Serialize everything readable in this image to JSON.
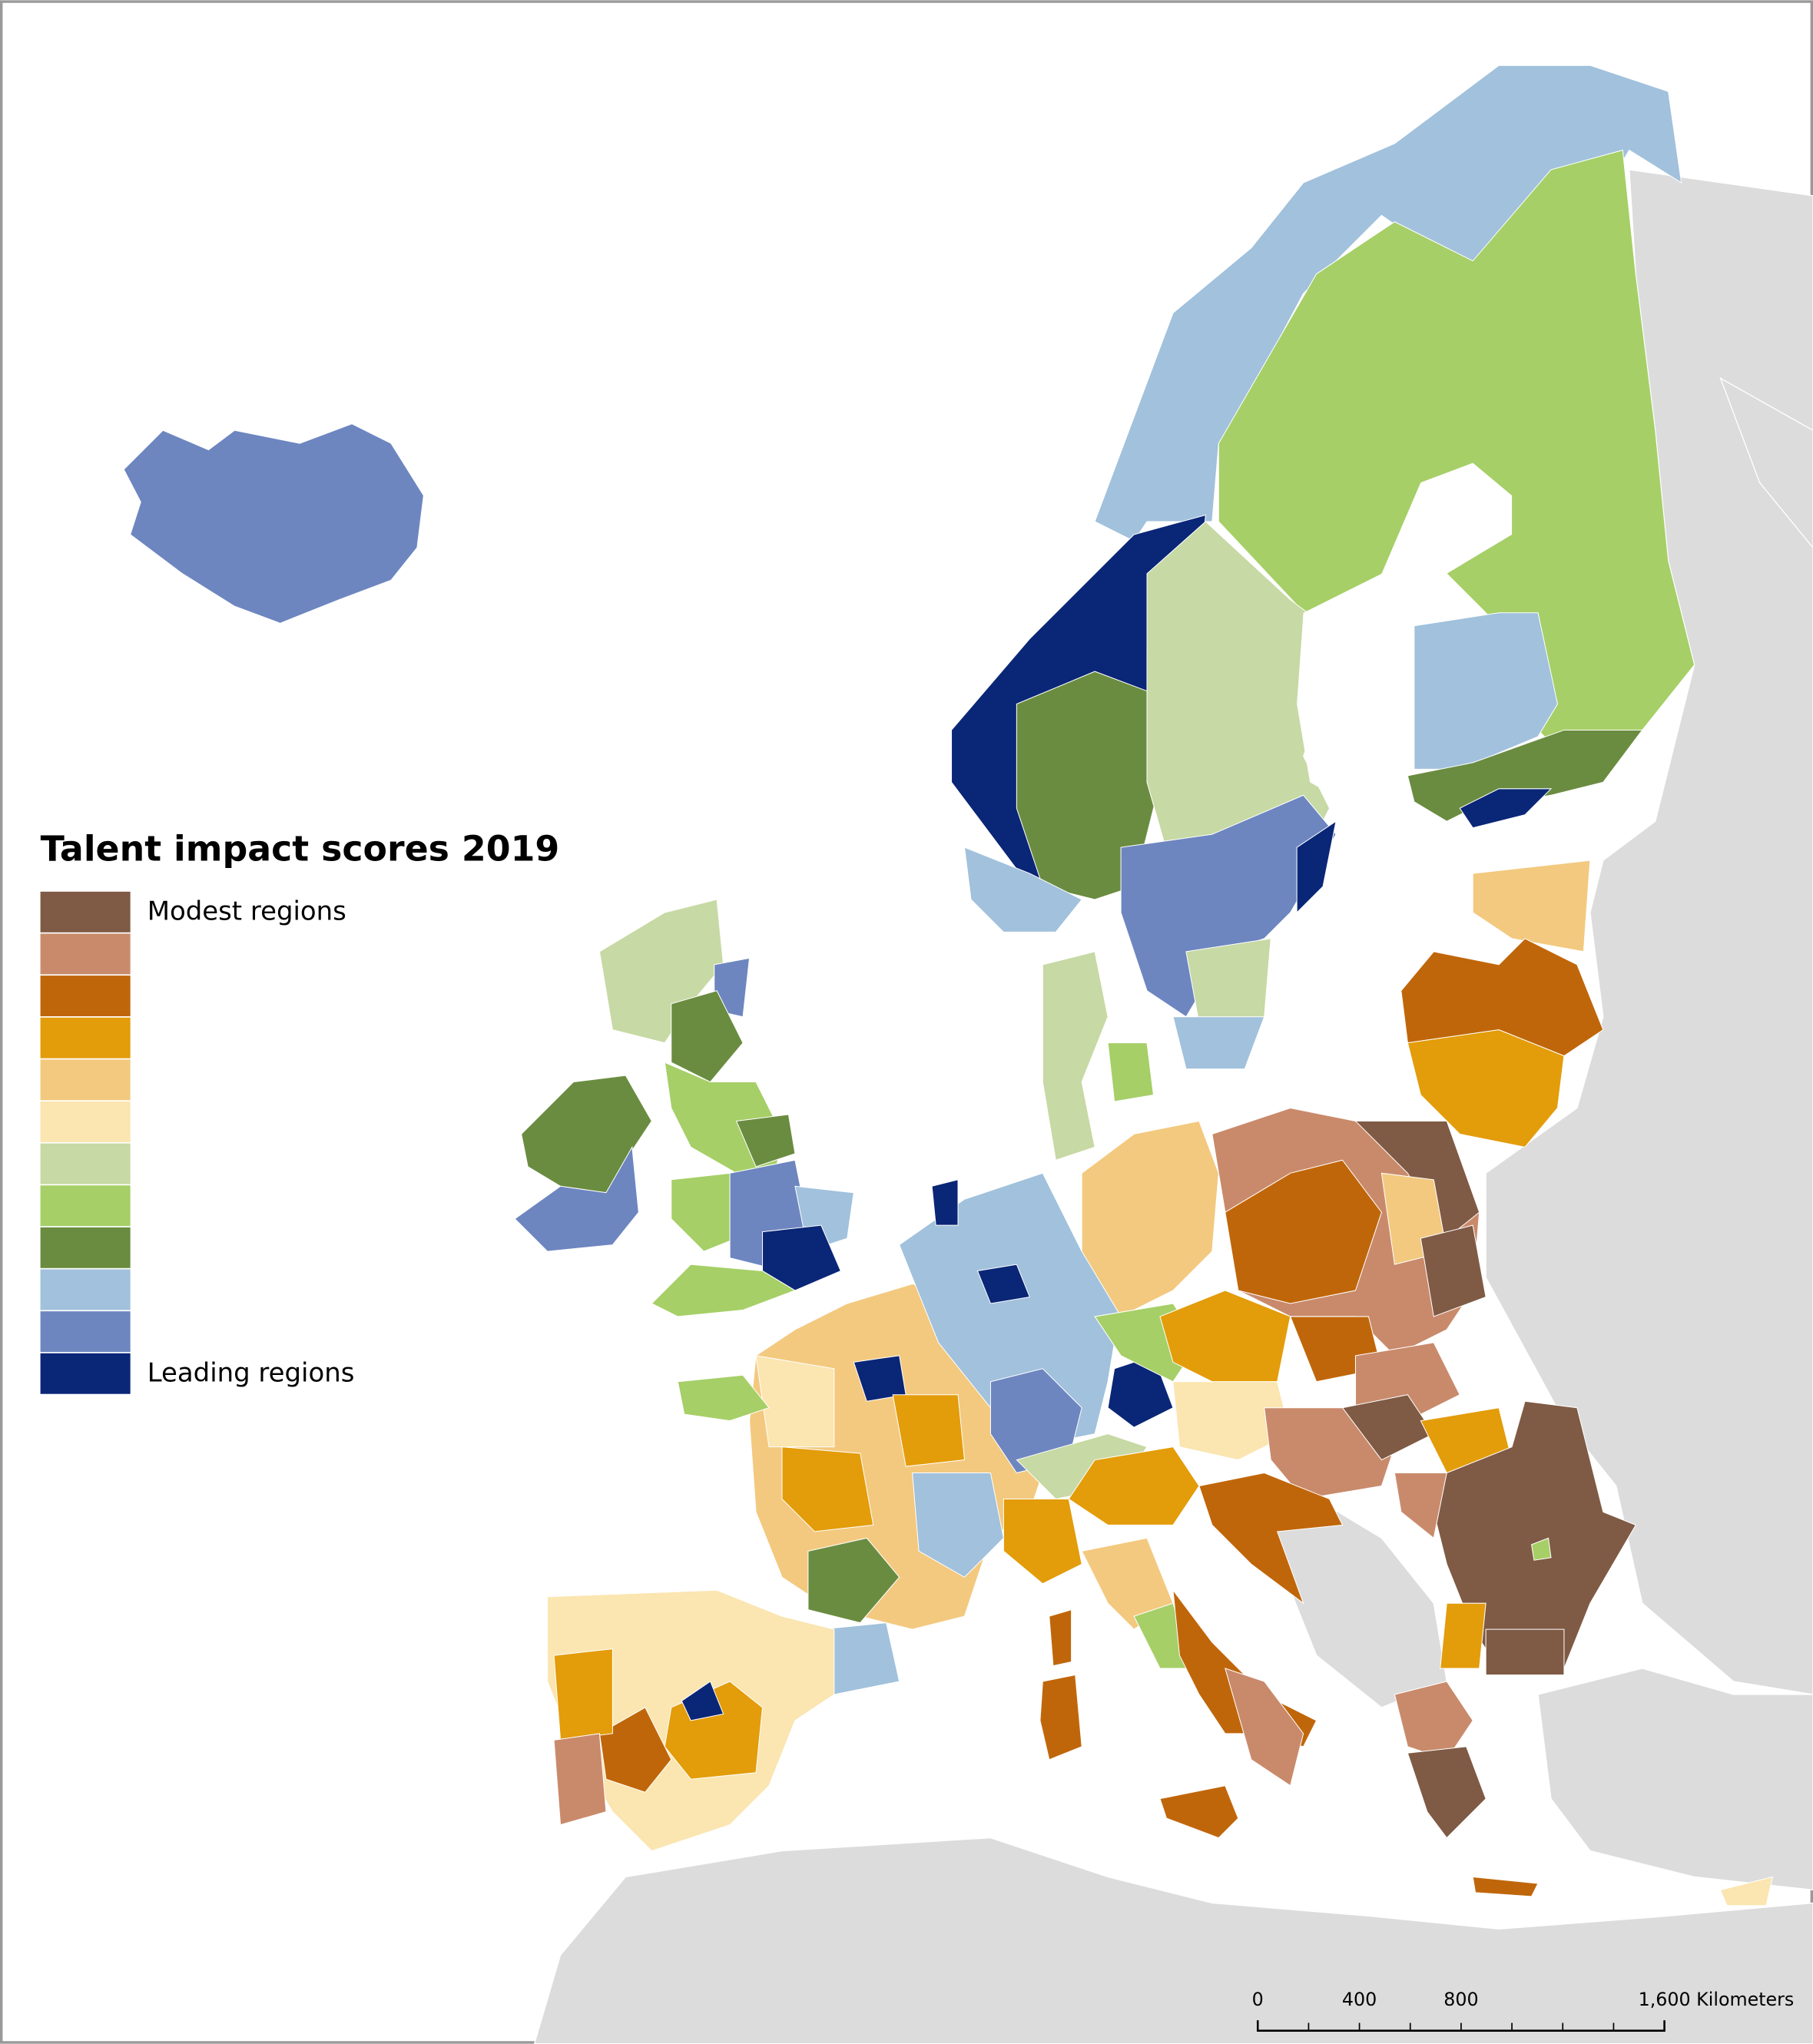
{
  "legend": {
    "title": "Talent impact scores 2019",
    "items": [
      {
        "color": "#7f5a44",
        "label": "Modest regions"
      },
      {
        "color": "#c98a6b"
      },
      {
        "color": "#c0660a"
      },
      {
        "color": "#e39c0a"
      },
      {
        "color": "#f3c97f"
      },
      {
        "color": "#fbe5b0"
      },
      {
        "color": "#c7d9a4"
      },
      {
        "color": "#a6cf67"
      },
      {
        "color": "#6a8c40"
      },
      {
        "color": "#a1c1dc"
      },
      {
        "color": "#6d86c0"
      },
      {
        "color": "#0a2677",
        "label": "Leading regions"
      }
    ]
  },
  "scale_bar": {
    "labels": [
      "0",
      "400",
      "800",
      "1,600 Kilometers"
    ]
  }
}
